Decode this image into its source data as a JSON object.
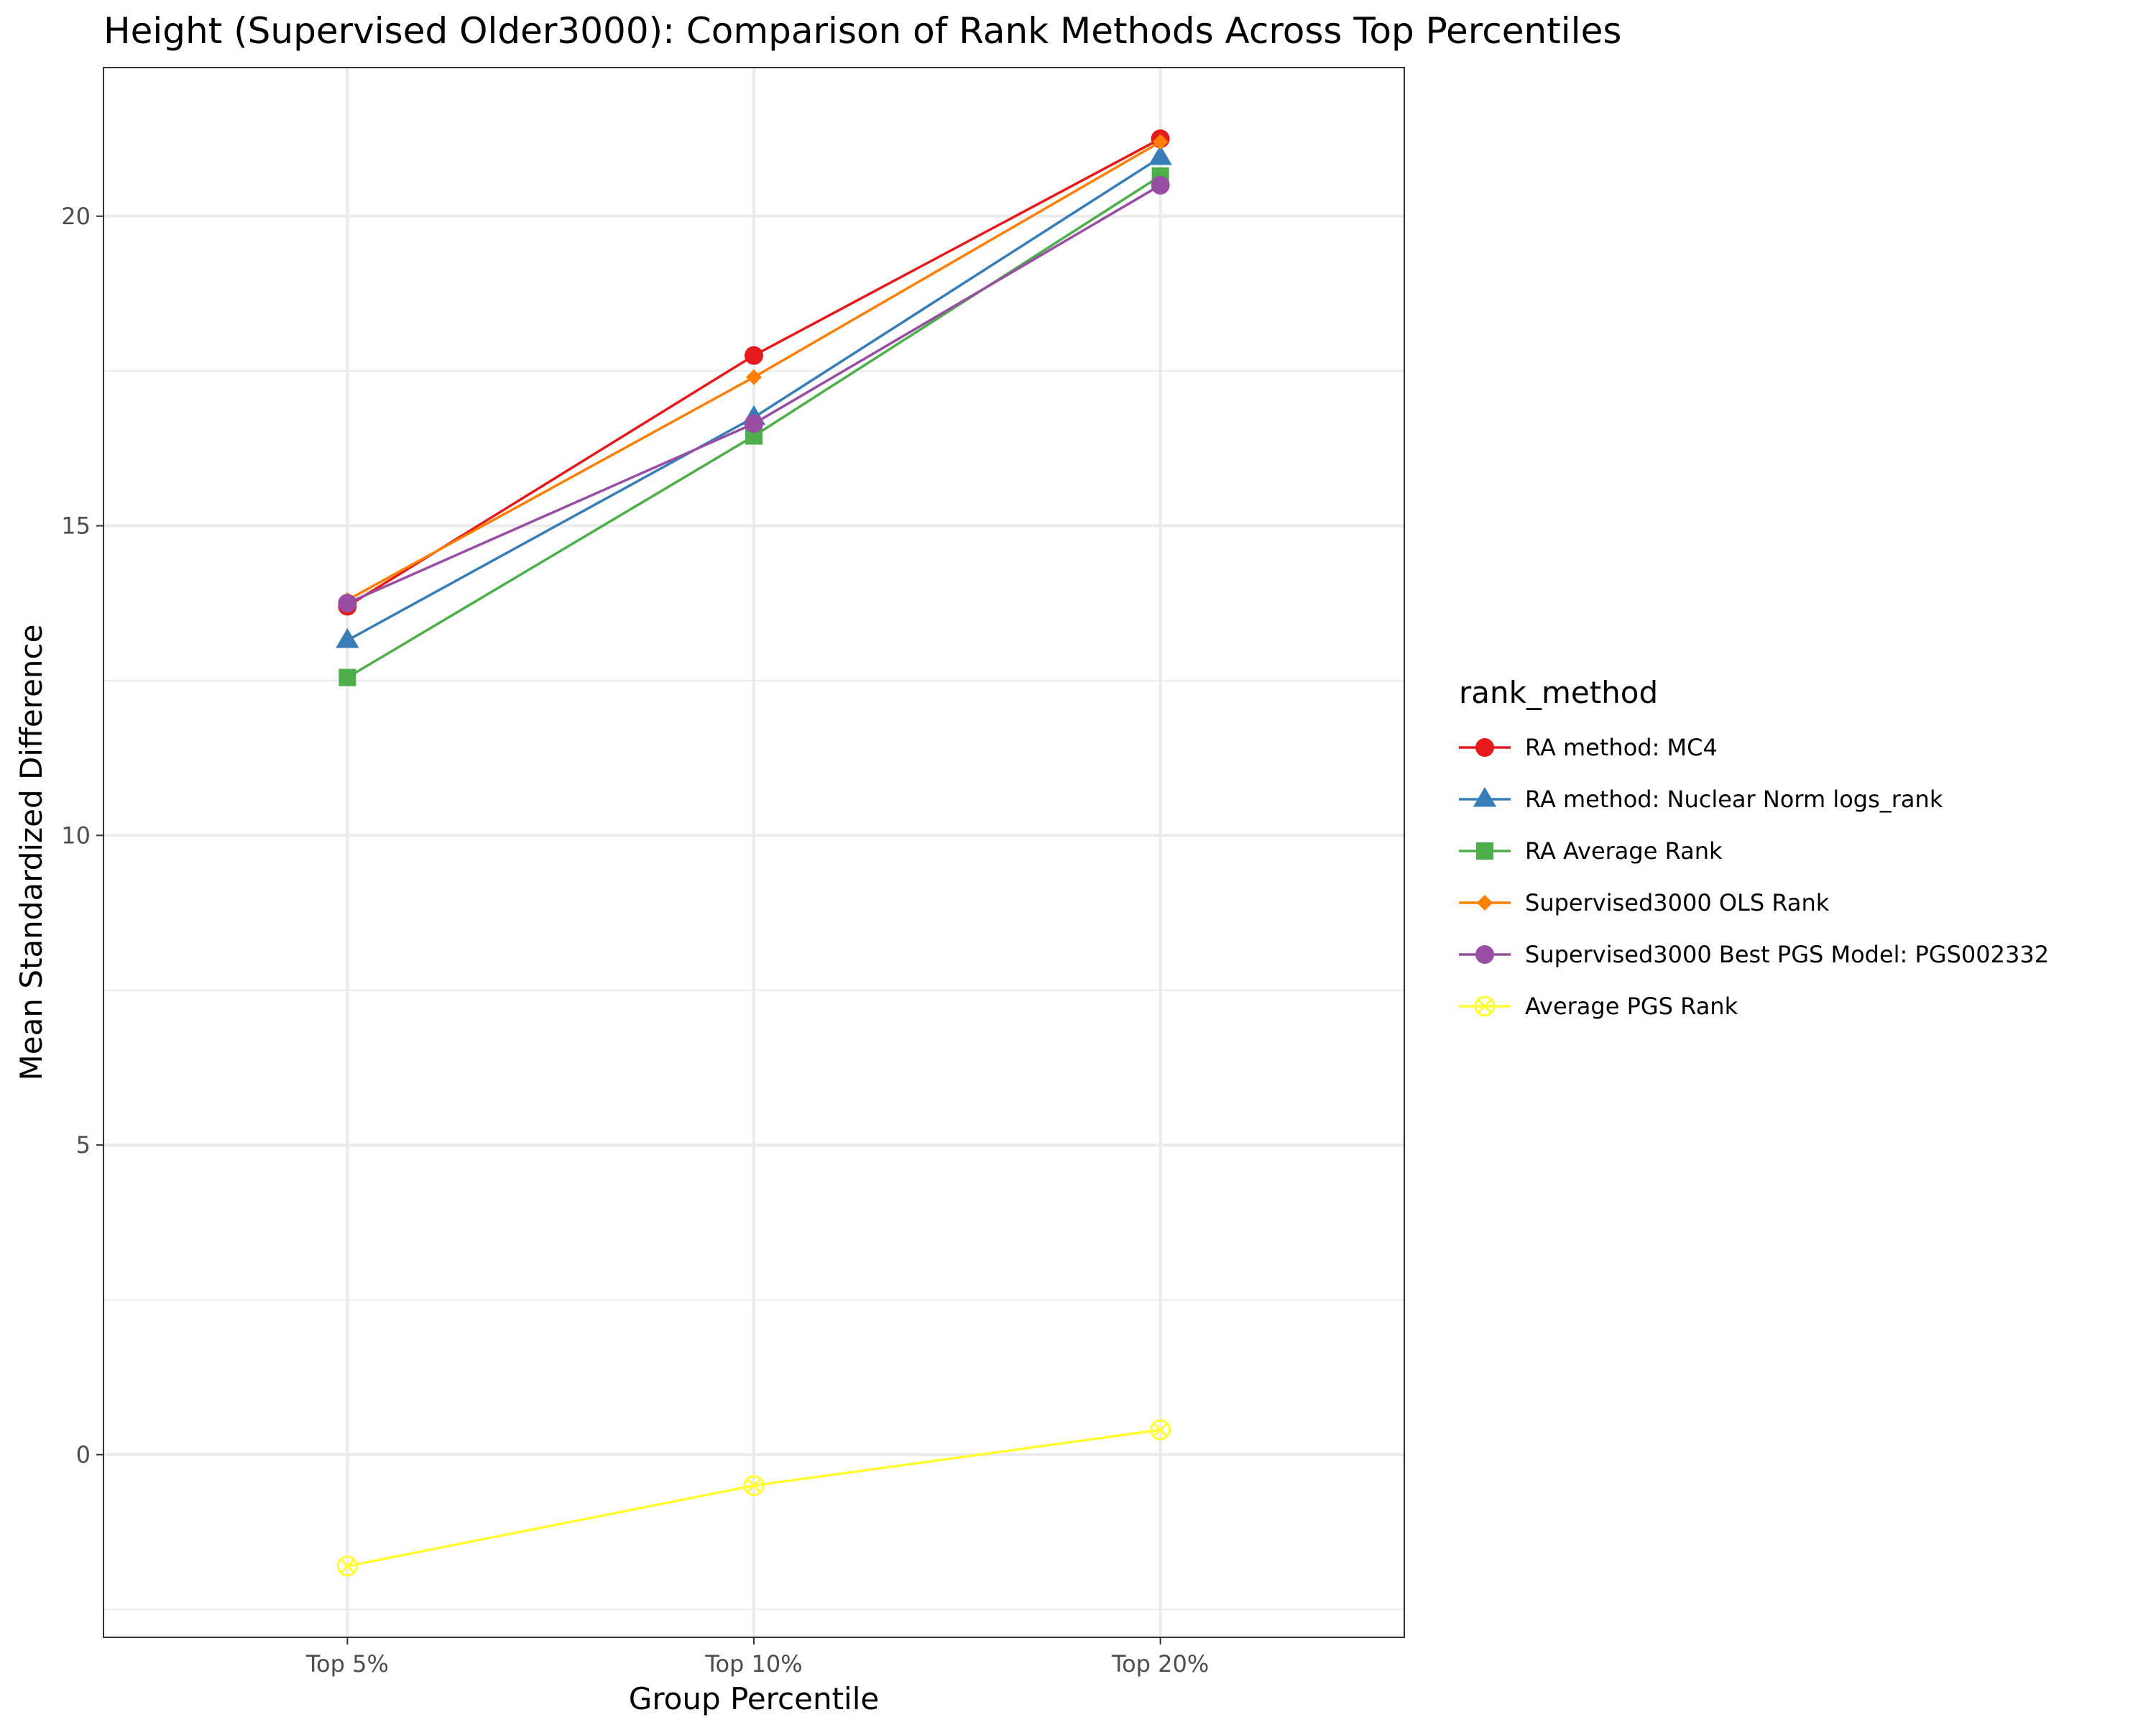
{
  "chart_data": {
    "type": "line",
    "title": "Height (Supervised Older3000): Comparison of Rank Methods Across Top Percentiles",
    "xlabel": "Group Percentile",
    "ylabel": "Mean Standardized Difference",
    "categories": [
      "Top 5%",
      "Top 10%",
      "Top 20%"
    ],
    "yticks": [
      0,
      5,
      10,
      15,
      20
    ],
    "ylim": [
      -2.95,
      22.4
    ],
    "grid": true,
    "legend": {
      "title": "rank_method",
      "position": "right"
    },
    "series": [
      {
        "name": "RA method: MC4",
        "color": "#e41a1c",
        "marker": "circle",
        "values": [
          13.7,
          17.75,
          21.25
        ]
      },
      {
        "name": "RA method: Nuclear Norm logs_rank",
        "color": "#377eb8",
        "marker": "triangle",
        "values": [
          13.15,
          16.75,
          20.95
        ]
      },
      {
        "name": "RA Average Rank",
        "color": "#4daf4a",
        "marker": "square",
        "values": [
          12.55,
          16.45,
          20.65
        ]
      },
      {
        "name": "Supervised3000 OLS Rank",
        "color": "#ff7f00",
        "marker": "diamond",
        "values": [
          13.8,
          17.4,
          21.2
        ]
      },
      {
        "name": "Supervised3000 Best PGS Model: PGS002332",
        "color": "#984ea3",
        "marker": "circle",
        "values": [
          13.75,
          16.65,
          20.5
        ]
      },
      {
        "name": "Average PGS Rank",
        "color": "#ffff33",
        "marker": "circle-cross",
        "values": [
          -1.8,
          -0.5,
          0.4
        ]
      }
    ]
  }
}
